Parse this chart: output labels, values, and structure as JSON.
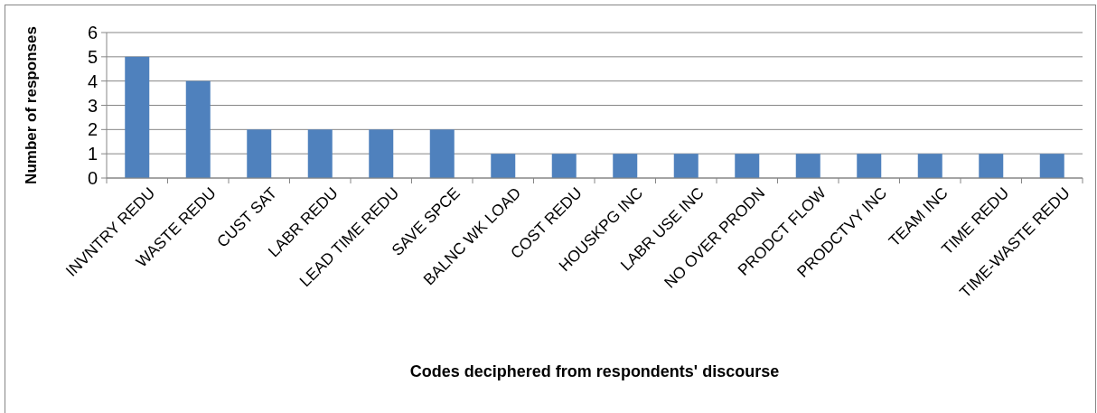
{
  "chart_data": {
    "type": "bar",
    "xlabel": "Codes deciphered from respondents' discourse",
    "ylabel": "Number of responses",
    "categories": [
      "INVNTRY REDU",
      "WASTE REDU",
      "CUST SAT",
      "LABR REDU",
      "LEAD TIME REDU",
      "SAVE SPCE",
      "BALNC WK LOAD",
      "COST REDU",
      "HOUSKPG INC",
      "LABR USE INC",
      "NO OVER PRODN",
      "PRODCT FLOW",
      "PRODCTVY INC",
      "TEAM INC",
      "TIME REDU",
      "TIME-WASTE REDU"
    ],
    "values": [
      5,
      4,
      2,
      2,
      2,
      2,
      1,
      1,
      1,
      1,
      1,
      1,
      1,
      1,
      1,
      1
    ],
    "color": "#4f81bd",
    "ylim": [
      0,
      6
    ],
    "yticks": [
      0,
      1,
      2,
      3,
      4,
      5,
      6
    ],
    "grid": "y"
  }
}
